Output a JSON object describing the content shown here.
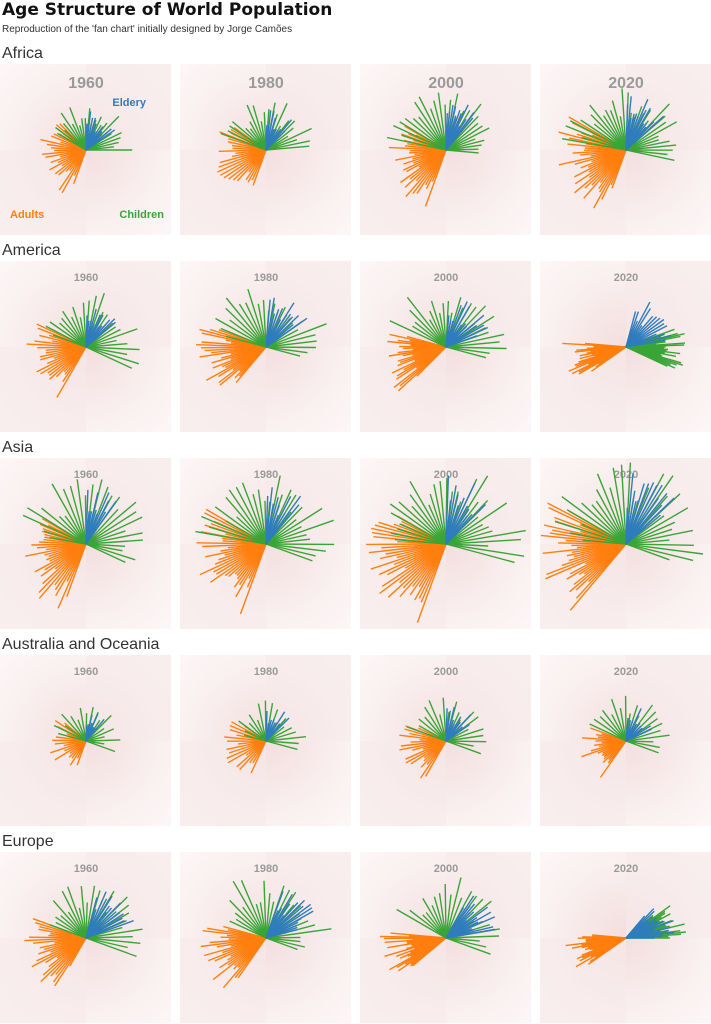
{
  "title": "Age Structure of World Population",
  "subtitle": "Reproduction of the 'fan chart' initially designed by Jorge Camões",
  "colors": {
    "elderly": "#2f7cbd",
    "adults": "#ff7f0e",
    "children": "#3aa537"
  },
  "chart_data": {
    "type": "fan",
    "years": [
      "1960",
      "1980",
      "2000",
      "2020"
    ],
    "legend": {
      "elderly": "Eldery",
      "adults": "Adults",
      "children": "Children"
    },
    "regions": [
      {
        "name": "Africa",
        "panels": [
          {
            "year": "1960",
            "scale": 0.78,
            "e": [
              35,
              88
            ],
            "a": [
              135,
              250
            ],
            "c": [
              0,
              150
            ],
            "n": [
              12,
              26,
              24
            ]
          },
          {
            "year": "1980",
            "scale": 0.85,
            "e": [
              45,
              88
            ],
            "a": [
              145,
              250
            ],
            "c": [
              5,
              160
            ],
            "n": [
              10,
              24,
              24
            ]
          },
          {
            "year": "2000",
            "scale": 1.0,
            "e": [
              50,
              88
            ],
            "a": [
              150,
              250
            ],
            "c": [
              -5,
              168
            ],
            "n": [
              12,
              30,
              28
            ]
          },
          {
            "year": "2020",
            "scale": 1.1,
            "e": [
              42,
              88
            ],
            "a": [
              150,
              250
            ],
            "c": [
              -12,
              170
            ],
            "n": [
              14,
              34,
              32
            ]
          }
        ]
      },
      {
        "name": "America",
        "panels": [
          {
            "year": "1960",
            "scale": 0.95,
            "e": [
              40,
              88
            ],
            "a": [
              155,
              240
            ],
            "c": [
              -25,
              160
            ],
            "n": [
              12,
              24,
              26
            ]
          },
          {
            "year": "1980",
            "scale": 1.1,
            "e": [
              35,
              85
            ],
            "a": [
              160,
              230
            ],
            "c": [
              -15,
              165
            ],
            "n": [
              12,
              28,
              26
            ]
          },
          {
            "year": "2000",
            "scale": 1.05,
            "e": [
              20,
              85
            ],
            "a": [
              165,
              225
            ],
            "c": [
              -15,
              155
            ],
            "n": [
              14,
              26,
              26
            ]
          },
          {
            "year": "2020",
            "scale": 1.0,
            "e": [
              10,
              75
            ],
            "a": [
              175,
              215
            ],
            "c": [
              -25,
              20
            ],
            "n": [
              16,
              24,
              26
            ]
          }
        ]
      },
      {
        "name": "Asia",
        "panels": [
          {
            "year": "1960",
            "scale": 1.15,
            "e": [
              55,
              88
            ],
            "a": [
              150,
              250
            ],
            "c": [
              -25,
              170
            ],
            "n": [
              10,
              30,
              28
            ]
          },
          {
            "year": "1980",
            "scale": 1.2,
            "e": [
              50,
              88
            ],
            "a": [
              150,
              250
            ],
            "c": [
              -20,
              170
            ],
            "n": [
              10,
              32,
              30
            ]
          },
          {
            "year": "2000",
            "scale": 1.35,
            "e": [
              45,
              88
            ],
            "a": [
              150,
              250
            ],
            "c": [
              -15,
              175
            ],
            "n": [
              12,
              34,
              32
            ]
          },
          {
            "year": "2020",
            "scale": 1.4,
            "e": [
              40,
              88
            ],
            "a": [
              150,
              230
            ],
            "c": [
              -20,
              175
            ],
            "n": [
              14,
              34,
              32
            ]
          }
        ]
      },
      {
        "name": "Australia and Oceania",
        "panels": [
          {
            "year": "1960",
            "scale": 0.6,
            "e": [
              50,
              88
            ],
            "a": [
              140,
              250
            ],
            "c": [
              -20,
              165
            ],
            "n": [
              8,
              18,
              18
            ]
          },
          {
            "year": "1980",
            "scale": 0.7,
            "e": [
              45,
              88
            ],
            "a": [
              145,
              245
            ],
            "c": [
              -15,
              165
            ],
            "n": [
              8,
              18,
              18
            ]
          },
          {
            "year": "2000",
            "scale": 0.75,
            "e": [
              35,
              88
            ],
            "a": [
              155,
              240
            ],
            "c": [
              -20,
              160
            ],
            "n": [
              10,
              20,
              20
            ]
          },
          {
            "year": "2020",
            "scale": 0.75,
            "e": [
              25,
              85
            ],
            "a": [
              160,
              235
            ],
            "c": [
              -20,
              155
            ],
            "n": [
              10,
              20,
              20
            ]
          }
        ]
      },
      {
        "name": "Europe",
        "panels": [
          {
            "year": "1960",
            "scale": 1.0,
            "e": [
              20,
              75
            ],
            "a": [
              160,
              240
            ],
            "c": [
              -20,
              160
            ],
            "n": [
              14,
              26,
              26
            ]
          },
          {
            "year": "1980",
            "scale": 1.1,
            "e": [
              15,
              70
            ],
            "a": [
              165,
              235
            ],
            "c": [
              -20,
              155
            ],
            "n": [
              16,
              26,
              26
            ]
          },
          {
            "year": "2000",
            "scale": 1.05,
            "e": [
              10,
              60
            ],
            "a": [
              175,
              220
            ],
            "c": [
              -20,
              150
            ],
            "n": [
              16,
              26,
              24
            ]
          },
          {
            "year": "2020",
            "scale": 1.0,
            "e": [
              0,
              50
            ],
            "a": [
              175,
              215
            ],
            "c": [
              0,
              40
            ],
            "n": [
              16,
              24,
              22
            ]
          }
        ]
      }
    ]
  }
}
